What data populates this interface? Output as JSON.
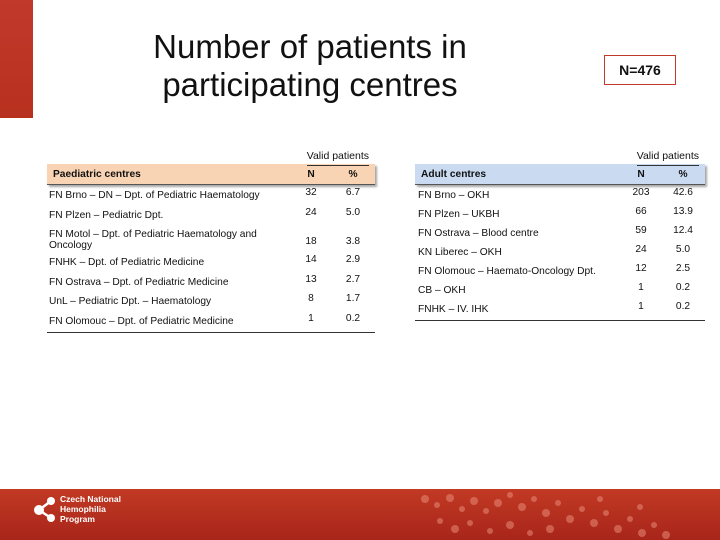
{
  "title": {
    "line1": "Number of patients in",
    "line2": "participating centres"
  },
  "total_badge": "N=476",
  "paediatric": {
    "valid_label": "Valid patients",
    "header": {
      "name": "Paediatric centres",
      "n": "N",
      "pct": "%"
    },
    "rows": [
      {
        "name": "FN Brno – DN – Dpt. of Pediatric Haematology",
        "n": "32",
        "pct": "6.7"
      },
      {
        "name": "FN Plzen – Pediatric Dpt.",
        "n": "24",
        "pct": "5.0"
      },
      {
        "name": "FN Motol – Dpt. of Pediatric Haematology and Oncology",
        "n": "18",
        "pct": "3.8"
      },
      {
        "name": "FNHK – Dpt. of Pediatric Medicine",
        "n": "14",
        "pct": "2.9"
      },
      {
        "name": "FN Ostrava – Dpt. of Pediatric Medicine",
        "n": "13",
        "pct": "2.7"
      },
      {
        "name": "UnL – Pediatric Dpt. – Haematology",
        "n": "8",
        "pct": "1.7"
      },
      {
        "name": "FN Olomouc – Dpt. of Pediatric Medicine",
        "n": "1",
        "pct": "0.2"
      }
    ]
  },
  "adult": {
    "valid_label": "Valid patients",
    "header": {
      "name": "Adult centres",
      "n": "N",
      "pct": "%"
    },
    "rows": [
      {
        "name": "FN Brno – OKH",
        "n": "203",
        "pct": "42.6"
      },
      {
        "name": "FN Plzen – UKBH",
        "n": "66",
        "pct": "13.9"
      },
      {
        "name": "FN Ostrava – Blood centre",
        "n": "59",
        "pct": "12.4"
      },
      {
        "name": "KN Liberec – OKH",
        "n": "24",
        "pct": "5.0"
      },
      {
        "name": "FN Olomouc – Haemato-Oncology Dpt.",
        "n": "12",
        "pct": "2.5"
      },
      {
        "name": "CB – OKH",
        "n": "1",
        "pct": "0.2"
      },
      {
        "name": "FNHK – IV. IHK",
        "n": "1",
        "pct": "0.2"
      }
    ]
  },
  "footer": {
    "logo_line1": "Czech National",
    "logo_line2": "Hemophilia",
    "logo_line3": "Program"
  },
  "colors": {
    "brand_red": "#c0392b",
    "paediatric_header": "#f9d4b4",
    "adult_header": "#c9daf1"
  }
}
